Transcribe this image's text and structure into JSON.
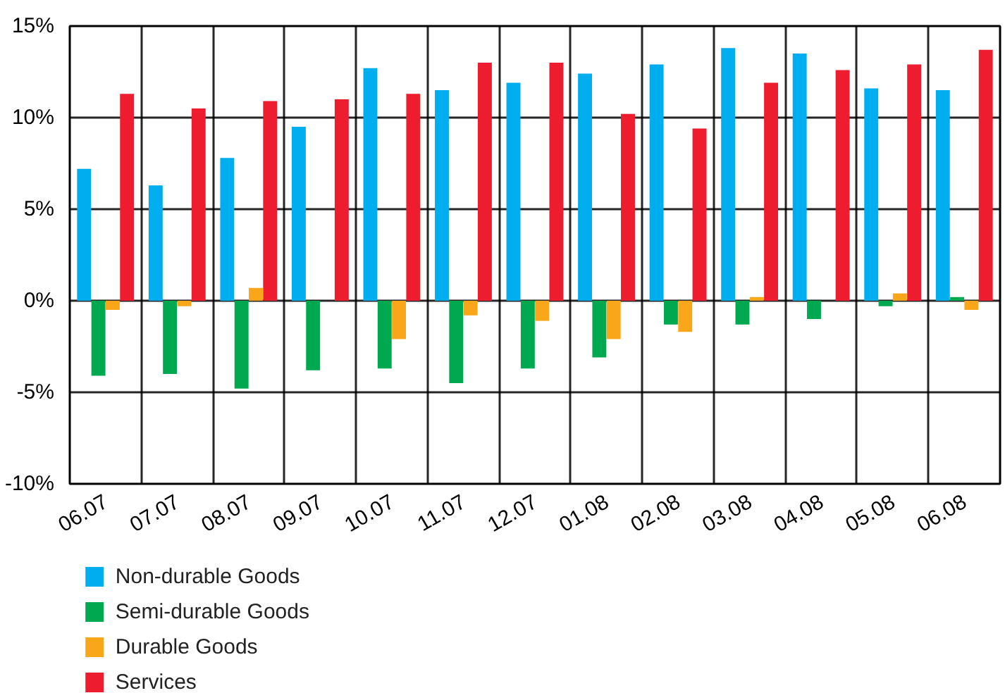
{
  "chart_data": {
    "type": "bar",
    "categories": [
      "06.07",
      "07.07",
      "08.07",
      "09.07",
      "10.07",
      "11.07",
      "12.07",
      "01.08",
      "02.08",
      "03.08",
      "04.08",
      "05.08",
      "06.08"
    ],
    "series": [
      {
        "name": "Non-durable Goods",
        "color": "#00adef",
        "values": [
          7.2,
          6.3,
          7.8,
          9.5,
          12.7,
          11.5,
          11.9,
          12.4,
          12.9,
          13.8,
          13.5,
          11.6,
          11.5
        ]
      },
      {
        "name": "Semi-durable Goods",
        "color": "#00a94f",
        "values": [
          -4.1,
          -4.0,
          -4.8,
          -3.8,
          -3.7,
          -4.5,
          -3.7,
          -3.1,
          -1.3,
          -1.3,
          -1.0,
          -0.3,
          0.2
        ]
      },
      {
        "name": "Durable Goods",
        "color": "#f9a61a",
        "values": [
          -0.5,
          -0.3,
          0.7,
          0,
          -2.1,
          -0.8,
          -1.1,
          -2.1,
          -1.7,
          0.2,
          0,
          0.4,
          -0.5
        ]
      },
      {
        "name": "Services",
        "color": "#ed1c2e",
        "values": [
          11.3,
          10.5,
          10.9,
          11.0,
          11.3,
          13.0,
          13.0,
          10.2,
          9.4,
          11.9,
          12.6,
          12.9,
          13.7
        ]
      }
    ],
    "ylim": [
      -10,
      15
    ],
    "yticks": [
      {
        "value": -10,
        "label": "-10%"
      },
      {
        "value": -5,
        "label": "-5%"
      },
      {
        "value": 0,
        "label": "0%"
      },
      {
        "value": 5,
        "label": "5%"
      },
      {
        "value": 10,
        "label": "10%"
      },
      {
        "value": 15,
        "label": "15%"
      }
    ],
    "grid": true,
    "legend": "bottom"
  }
}
